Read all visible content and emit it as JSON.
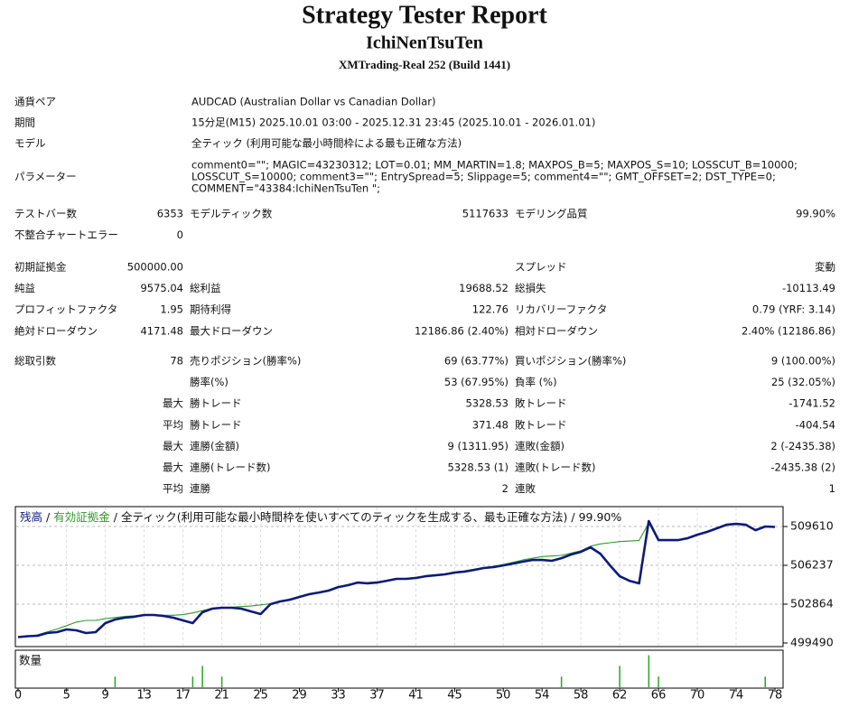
{
  "header": {
    "title": "Strategy Tester Report",
    "subtitle": "IchiNenTsuTen",
    "build": "XMTrading-Real 252 (Build 1441)"
  },
  "info": [
    {
      "label": "通貨ペア",
      "lines": [
        "AUDCAD (Australian Dollar vs Canadian Dollar)"
      ]
    },
    {
      "label": "期間",
      "lines": [
        "15分足(M15) 2025.10.01 03:00 - 2025.12.31 23:45 (2025.10.01 - 2026.01.01)"
      ]
    },
    {
      "label": "モデル",
      "lines": [
        "全ティック (利用可能な最小時間枠による最も正確な方法)"
      ]
    },
    {
      "label": "パラメーター",
      "lines": [
        "comment0=\"\"; MAGIC=43230312; LOT=0.01; MM_MARTIN=1.8; MAXPOS_B=5; MAXPOS_S=10; LOSSCUT_B=10000;",
        "LOSSCUT_S=10000; comment3=\"\"; EntrySpread=5; Slippage=5; comment4=\"\"; GMT_OFFSET=2; DST_TYPE=0;",
        "COMMENT=\"43384:IchiNenTsuTen \";"
      ]
    }
  ],
  "stats": [
    [
      [
        "テストバー数",
        "6353",
        "モデルティック数",
        "5117633",
        "モデリング品質",
        "99.90%"
      ],
      [
        "不整合チャートエラー",
        "0",
        null,
        null,
        null,
        null
      ]
    ],
    [
      [
        "初期証拠金",
        "500000.00",
        null,
        null,
        "スプレッド",
        "変動"
      ],
      [
        "純益",
        "9575.04",
        "総利益",
        "19688.52",
        "総損失",
        "-10113.49"
      ],
      [
        "プロフィットファクタ",
        "1.95",
        "期待利得",
        "122.76",
        "リカバリーファクタ",
        "0.79 (YRF: 3.14)"
      ],
      [
        "絶対ドローダウン",
        "4171.48",
        "最大ドローダウン",
        "12186.86 (2.40%)",
        "相対ドローダウン",
        "2.40% (12186.86)"
      ]
    ],
    [
      [
        "総取引数",
        "78",
        "売りポジション(勝率%)",
        "69 (63.77%)",
        "買いポジション(勝率%)",
        "9 (100.00%)"
      ],
      [
        null,
        null,
        "勝率(%)",
        "53 (67.95%)",
        "負率 (%)",
        "25 (32.05%)"
      ],
      [
        null,
        "最大",
        "勝トレード",
        "5328.53",
        "敗トレード",
        "-1741.52"
      ],
      [
        null,
        "平均",
        "勝トレード",
        "371.48",
        "敗トレード",
        "-404.54"
      ],
      [
        null,
        "最大",
        "連勝(金額)",
        "9 (1311.95)",
        "連敗(金額)",
        "2 (-2435.38)"
      ],
      [
        null,
        "最大",
        "連勝(トレード数)",
        "5328.53 (1)",
        "連敗(トレード数)",
        "-2435.38 (2)"
      ],
      [
        null,
        "平均",
        "連勝",
        "2",
        "連敗",
        "1"
      ]
    ]
  ],
  "chart_data": {
    "type": "line",
    "legend_separator": "/",
    "legend_note": "全ティック(利用可能な最小時間枠を使いすべてのティックを生成する、最も正確な方法)",
    "legend_quality": "99.90%",
    "x": [
      0,
      1,
      2,
      3,
      4,
      5,
      6,
      7,
      8,
      9,
      10,
      11,
      12,
      13,
      14,
      15,
      16,
      17,
      18,
      19,
      20,
      21,
      22,
      23,
      24,
      25,
      26,
      27,
      28,
      29,
      30,
      31,
      32,
      33,
      34,
      35,
      36,
      37,
      38,
      39,
      40,
      41,
      42,
      43,
      44,
      45,
      46,
      47,
      48,
      49,
      50,
      51,
      52,
      53,
      54,
      55,
      56,
      57,
      58,
      59,
      60,
      61,
      62,
      63,
      64,
      65,
      66,
      67,
      68,
      69,
      70,
      71,
      72,
      73,
      74,
      75,
      76,
      77,
      78
    ],
    "series": [
      {
        "name": "残高",
        "color": "#0d1a7a",
        "values": [
          500000,
          500080,
          500120,
          500350,
          500430,
          500670,
          500590,
          500350,
          500430,
          501220,
          501530,
          501690,
          501770,
          501920,
          501920,
          501840,
          501690,
          501450,
          501220,
          502160,
          502470,
          502550,
          502550,
          502470,
          502240,
          502000,
          502860,
          503100,
          503250,
          503490,
          503730,
          503880,
          504040,
          504350,
          504510,
          504740,
          504670,
          504740,
          504900,
          505060,
          505060,
          505140,
          505290,
          505370,
          505450,
          505610,
          505690,
          505840,
          506000,
          506080,
          506230,
          506390,
          506550,
          506700,
          506700,
          506630,
          506860,
          507180,
          507410,
          507800,
          507250,
          506230,
          505290,
          504900,
          504670,
          510080,
          508430,
          508430,
          508430,
          508590,
          508900,
          509140,
          509450,
          509760,
          509840,
          509760,
          509290,
          509610,
          509575
        ]
      },
      {
        "name": "有効証拠金",
        "color": "#2e9a2e",
        "values": [
          500000,
          500080,
          500200,
          500450,
          500700,
          501000,
          501300,
          501450,
          501450,
          501600,
          501700,
          501800,
          501850,
          501920,
          501920,
          501900,
          501900,
          501950,
          502100,
          502300,
          502500,
          502550,
          502600,
          502650,
          502700,
          502800,
          502900,
          503100,
          503300,
          503500,
          503750,
          503900,
          504050,
          504350,
          504550,
          504750,
          504750,
          504800,
          504900,
          505050,
          505100,
          505200,
          505300,
          505400,
          505500,
          505650,
          505750,
          505900,
          506050,
          506150,
          506300,
          506500,
          506700,
          506850,
          507000,
          507050,
          507100,
          507300,
          507500,
          507900,
          508100,
          508200,
          508300,
          508350,
          508400,
          509900,
          508450,
          508450,
          508450,
          508600,
          508900,
          509150,
          509450,
          509760,
          509840,
          509760,
          509300,
          509610,
          509575
        ]
      }
    ],
    "xlim": [
      0,
      78
    ],
    "xticks": [
      0,
      5,
      9,
      13,
      17,
      21,
      25,
      29,
      33,
      37,
      41,
      45,
      50,
      54,
      58,
      62,
      66,
      70,
      74,
      78
    ],
    "ylim": [
      499490,
      511260
    ],
    "yticks": [
      499490,
      502864,
      506237,
      509610
    ],
    "grid": true,
    "volume": {
      "label": "数量",
      "color": "#22aa22",
      "x": [
        10,
        18,
        19,
        21,
        56,
        62,
        65,
        66,
        77
      ],
      "values": [
        1,
        1,
        2,
        1,
        1,
        2,
        3,
        1,
        1
      ],
      "ylim": [
        0,
        3.3
      ]
    }
  }
}
